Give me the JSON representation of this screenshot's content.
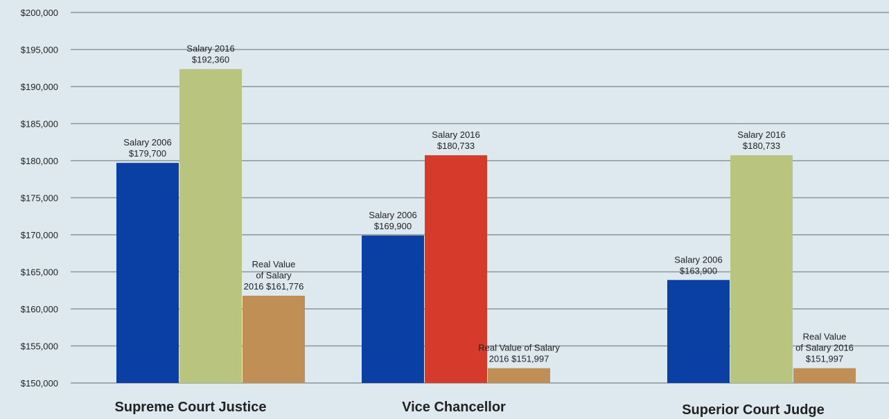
{
  "colors": {
    "background": "#dde9ef",
    "grid": "#8a9499",
    "salary_2006": "#0a3fa3",
    "salary_2016_green": "#b9c47e",
    "salary_2016_red": "#d53a2b",
    "real_value": "#bf8f55"
  },
  "chart_data": {
    "type": "bar",
    "title": "",
    "xlabel": "",
    "ylabel": "",
    "ylim": [
      150000,
      200000
    ],
    "y_tick_step": 5000,
    "y_tick_labels": [
      "$150,000",
      "$155,000",
      "$160,000",
      "$165,000",
      "$170,000",
      "$175,000",
      "$180,000",
      "$185,000",
      "$190,000",
      "$195,000",
      "$200,000"
    ],
    "grid": true,
    "legend": "none",
    "categories": [
      "Supreme Court Justice",
      "Vice Chancellor",
      "Superior Court Judge"
    ],
    "groups": [
      {
        "category": "Supreme Court Justice",
        "bars": [
          {
            "value": 179700,
            "color": "#0a3fa3",
            "label_lines": [
              "Salary 2006",
              "$179,700"
            ]
          },
          {
            "value": 192360,
            "color": "#b9c47e",
            "label_lines": [
              "Salary 2016",
              "$192,360"
            ]
          },
          {
            "value": 161776,
            "color": "#bf8f55",
            "label_lines": [
              "Real Value",
              "of Salary",
              "2016 $161,776"
            ]
          }
        ]
      },
      {
        "category": "Vice Chancellor",
        "bars": [
          {
            "value": 169900,
            "color": "#0a3fa3",
            "label_lines": [
              "Salary 2006",
              "$169,900"
            ]
          },
          {
            "value": 180733,
            "color": "#d53a2b",
            "label_lines": [
              "Salary 2016",
              "$180,733"
            ]
          },
          {
            "value": 151997,
            "color": "#bf8f55",
            "label_lines": [
              "Real Value of Salary",
              "2016  $151,997"
            ]
          }
        ]
      },
      {
        "category": "Superior Court Judge",
        "bars": [
          {
            "value": 163900,
            "color": "#0a3fa3",
            "label_lines": [
              "Salary 2006",
              "$163,900"
            ]
          },
          {
            "value": 180733,
            "color": "#b9c47e",
            "label_lines": [
              "Salary 2016",
              "$180,733"
            ]
          },
          {
            "value": 151997,
            "color": "#bf8f55",
            "label_lines": [
              "Real Value",
              "of Salary 2016",
              "$151,997"
            ]
          }
        ]
      }
    ]
  }
}
